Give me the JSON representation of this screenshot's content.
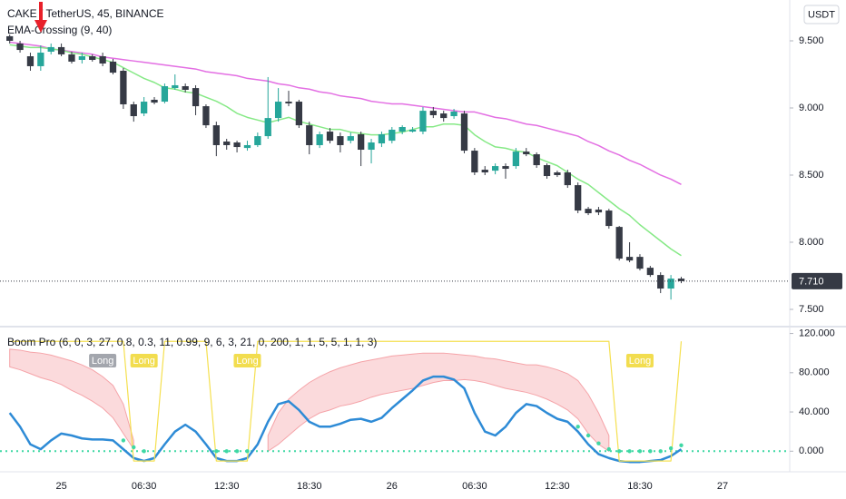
{
  "chart_data": [
    {
      "type": "candlestick",
      "title": "CAKE / TetherUS, 45, BINANCE",
      "subtitle": "EMA-Crossing (9, 40)",
      "unit": "USDT",
      "categories": [
        null,
        null,
        null,
        null,
        null,
        "25",
        null,
        null,
        null,
        null,
        null,
        null,
        null,
        "06:30",
        null,
        null,
        null,
        null,
        null,
        null,
        null,
        "12:30",
        null,
        null,
        null,
        null,
        null,
        null,
        null,
        "18:30",
        null,
        null,
        null,
        null,
        null,
        null,
        null,
        "26",
        null,
        null,
        null,
        null,
        null,
        null,
        null,
        "06:30",
        null,
        null,
        null,
        null,
        null,
        null,
        null,
        "12:30",
        null,
        null,
        null,
        null,
        null,
        null,
        null,
        "18:30",
        null,
        null,
        null,
        null,
        null,
        null,
        null,
        "27",
        null,
        null,
        null,
        null,
        null,
        null
      ],
      "open": [
        9.534,
        9.48,
        9.385,
        9.311,
        9.419,
        9.453,
        9.399,
        9.358,
        9.385,
        9.385,
        9.345,
        9.277,
        9.027,
        8.959,
        9.061,
        9.047,
        9.148,
        9.162,
        9.148,
        9.013,
        8.871,
        8.75,
        8.743,
        8.702,
        8.723,
        8.79,
        8.925,
        9.047,
        9.047,
        8.871,
        8.723,
        8.824,
        8.79,
        8.756,
        8.804,
        8.689,
        8.736,
        8.756,
        8.824,
        8.824,
        8.824,
        8.979,
        8.959,
        8.939,
        8.959,
        8.682,
        8.54,
        8.533,
        8.567,
        8.567,
        8.675,
        8.655,
        8.574,
        8.52,
        8.52,
        8.425,
        8.249,
        8.243,
        8.236,
        8.114,
        7.891,
        7.891,
        7.81,
        7.756,
        7.655,
        7.729,
        null,
        null,
        null,
        null,
        null,
        null,
        null,
        null,
        null,
        null
      ],
      "high": [
        9.547,
        9.5,
        9.412,
        9.466,
        9.48,
        9.48,
        9.419,
        9.412,
        9.399,
        9.412,
        9.365,
        9.297,
        9.047,
        9.081,
        9.081,
        9.182,
        9.25,
        9.182,
        9.169,
        9.027,
        8.898,
        8.77,
        8.756,
        8.756,
        8.817,
        9.23,
        9.148,
        9.128,
        9.061,
        8.898,
        8.824,
        8.851,
        8.817,
        8.817,
        8.824,
        8.77,
        8.824,
        8.858,
        8.871,
        8.858,
        9.007,
        9.007,
        8.979,
        8.993,
        8.979,
        8.702,
        8.567,
        8.587,
        8.587,
        8.702,
        8.702,
        8.669,
        8.587,
        8.533,
        8.54,
        8.445,
        8.263,
        8.263,
        8.249,
        8.121,
        8.0,
        7.911,
        7.824,
        7.776,
        7.756,
        7.742,
        null,
        null,
        null,
        null,
        null,
        null,
        null,
        null,
        null,
        null
      ],
      "low": [
        9.48,
        9.412,
        9.277,
        9.277,
        9.399,
        9.385,
        9.331,
        9.331,
        9.345,
        9.311,
        9.25,
        8.993,
        8.898,
        8.939,
        9.027,
        9.034,
        9.135,
        9.115,
        8.946,
        8.851,
        8.641,
        8.689,
        8.669,
        8.682,
        8.709,
        8.77,
        8.898,
        9.013,
        8.851,
        8.655,
        8.702,
        8.736,
        8.669,
        8.736,
        8.567,
        8.587,
        8.709,
        8.736,
        8.804,
        8.817,
        8.804,
        8.925,
        8.898,
        8.919,
        8.662,
        8.5,
        8.5,
        8.506,
        8.473,
        8.547,
        8.641,
        8.554,
        8.473,
        8.486,
        8.405,
        8.216,
        8.202,
        8.202,
        8.101,
        7.864,
        7.851,
        7.79,
        7.742,
        7.621,
        7.573,
        7.695,
        null,
        null,
        null,
        null,
        null,
        null,
        null,
        null,
        null,
        null
      ],
      "close": [
        9.5,
        9.432,
        9.311,
        9.412,
        9.453,
        9.399,
        9.345,
        9.385,
        9.358,
        9.331,
        9.263,
        9.027,
        8.939,
        9.047,
        9.04,
        9.162,
        9.169,
        9.135,
        9.013,
        8.871,
        8.723,
        8.723,
        8.709,
        8.723,
        8.79,
        8.925,
        9.047,
        9.034,
        8.871,
        8.723,
        8.804,
        8.756,
        8.723,
        8.79,
        8.689,
        8.743,
        8.804,
        8.838,
        8.858,
        8.838,
        8.979,
        8.946,
        8.925,
        8.973,
        8.682,
        8.52,
        8.52,
        8.567,
        8.547,
        8.675,
        8.655,
        8.574,
        8.493,
        8.5,
        8.425,
        8.236,
        8.216,
        8.222,
        8.121,
        7.878,
        7.864,
        7.803,
        7.756,
        7.655,
        7.729,
        7.71,
        null,
        null,
        null,
        null,
        null,
        null,
        null,
        null,
        null,
        null
      ],
      "up_color": "#26a69a",
      "down_color": "#363a45",
      "series": [
        {
          "color": "#e36fe3",
          "values": [
            9.49,
            9.48,
            9.47,
            9.46,
            9.44,
            9.43,
            9.42,
            9.41,
            9.4,
            9.38,
            9.37,
            9.36,
            9.35,
            9.34,
            9.33,
            9.32,
            9.31,
            9.3,
            9.29,
            9.27,
            9.26,
            9.25,
            9.24,
            9.22,
            9.21,
            9.2,
            9.18,
            9.17,
            9.15,
            9.14,
            9.12,
            9.11,
            9.09,
            9.08,
            9.07,
            9.05,
            9.04,
            9.03,
            9.03,
            9.02,
            9.01,
            9.0,
            8.99,
            8.98,
            8.97,
            8.97,
            8.95,
            8.93,
            8.92,
            8.9,
            8.88,
            8.87,
            8.85,
            8.83,
            8.81,
            8.79,
            8.75,
            8.72,
            8.68,
            8.65,
            8.61,
            8.58,
            8.54,
            8.5,
            8.47,
            8.43,
            null,
            null,
            null,
            null,
            null,
            null,
            null,
            null,
            null,
            null
          ]
        },
        {
          "color": "#86e986",
          "values": [
            9.47,
            9.46,
            9.45,
            9.45,
            9.44,
            9.43,
            9.41,
            9.4,
            9.38,
            9.36,
            9.34,
            9.3,
            9.26,
            9.22,
            9.19,
            9.15,
            9.14,
            9.12,
            9.11,
            9.08,
            9.05,
            9.01,
            8.96,
            8.93,
            8.91,
            8.89,
            8.91,
            8.93,
            8.9,
            8.88,
            8.86,
            8.84,
            8.84,
            8.82,
            8.81,
            8.8,
            8.8,
            8.81,
            8.82,
            8.84,
            8.86,
            8.86,
            8.88,
            8.88,
            8.87,
            8.8,
            8.75,
            8.71,
            8.7,
            8.68,
            8.67,
            8.63,
            8.6,
            8.57,
            8.52,
            8.47,
            8.43,
            8.37,
            8.31,
            8.25,
            8.2,
            8.13,
            8.07,
            8.01,
            7.95,
            7.9,
            null,
            null,
            null,
            null,
            null,
            null,
            null,
            null,
            null,
            null
          ]
        }
      ],
      "ylim": [
        7.385,
        9.804
      ],
      "yticks": [
        {
          "value": 9.5,
          "label": "9.500"
        },
        {
          "value": 9.0,
          "label": "9.000"
        },
        {
          "value": 8.5,
          "label": "8.500"
        },
        {
          "value": 8.0,
          "label": "8.000"
        },
        {
          "value": 7.5,
          "label": "7.500"
        }
      ],
      "last_price": {
        "value": 7.71,
        "label": "7.710"
      },
      "grid": false
    },
    {
      "type": "oscillator",
      "title": "Boom Pro (6, 0, 3, 27, 0.8, 0.3, 11, 0.99, 9, 6, 3, 21, 0, 200, 1, 1, 5, 5, 1, 1, 3)",
      "series": [
        {
          "color": "#2e8bd6",
          "values": [
            39,
            25,
            7,
            2,
            11,
            18,
            16,
            13,
            12,
            12,
            11,
            2,
            -7,
            -10,
            -7,
            7,
            20,
            27,
            20,
            7,
            -7,
            -10,
            -10,
            -7,
            7,
            30,
            48,
            51,
            42,
            30,
            25,
            25,
            28,
            32,
            33,
            30,
            34,
            44,
            53,
            62,
            72,
            76,
            76,
            73,
            64,
            39,
            20,
            16,
            25,
            39,
            48,
            46,
            39,
            33,
            30,
            20,
            7,
            -3,
            -7,
            -10,
            -11,
            -11,
            -10,
            -9,
            -5,
            2,
            null,
            null,
            null,
            null,
            null,
            null,
            null,
            null,
            null,
            null
          ]
        },
        {
          "color": "#f5e050",
          "values": [
            112,
            112,
            112,
            112,
            112,
            112,
            112,
            112,
            112,
            112,
            112,
            112,
            -10,
            -10,
            -10,
            112,
            112,
            112,
            112,
            112,
            -10,
            -10,
            -10,
            -10,
            112,
            112,
            112,
            112,
            112,
            112,
            112,
            112,
            112,
            112,
            112,
            112,
            112,
            112,
            112,
            112,
            112,
            112,
            112,
            112,
            112,
            112,
            112,
            112,
            112,
            112,
            112,
            112,
            112,
            112,
            112,
            112,
            112,
            112,
            112,
            -10,
            -10,
            -10,
            -10,
            -10,
            -10,
            112,
            null,
            null,
            null,
            null,
            null,
            null,
            null,
            null,
            null,
            null
          ]
        }
      ],
      "band": {
        "color": "#f5a3a8",
        "upper": [
          104,
          103,
          101,
          100,
          98,
          95,
          92,
          88,
          83,
          76,
          67,
          48,
          11,
          null,
          null,
          null,
          null,
          null,
          null,
          null,
          null,
          null,
          null,
          null,
          null,
          16,
          39,
          53,
          62,
          70,
          76,
          81,
          85,
          88,
          91,
          93,
          95,
          97,
          98,
          99,
          100,
          100,
          100,
          99,
          98,
          97,
          95,
          94,
          92,
          90,
          88,
          88,
          86,
          83,
          79,
          72,
          58,
          39,
          16,
          null,
          null,
          null,
          null,
          null,
          null,
          null,
          null,
          null,
          null,
          null,
          null,
          null,
          null,
          null,
          null,
          null
        ],
        "lower": [
          86,
          83,
          79,
          75,
          72,
          68,
          62,
          57,
          51,
          44,
          34,
          18,
          2,
          null,
          null,
          null,
          null,
          null,
          null,
          null,
          null,
          null,
          null,
          null,
          null,
          0,
          7,
          16,
          25,
          33,
          39,
          42,
          46,
          48,
          51,
          55,
          58,
          60,
          62,
          64,
          67,
          70,
          72,
          72,
          73,
          72,
          70,
          67,
          64,
          62,
          60,
          57,
          53,
          48,
          42,
          33,
          18,
          7,
          0,
          null,
          null,
          null,
          null,
          null,
          null,
          null,
          null,
          null,
          null,
          null,
          null,
          null,
          null,
          null,
          null,
          null
        ]
      },
      "dots": {
        "color": "#3fd8a4",
        "values": [
          null,
          null,
          null,
          null,
          null,
          null,
          null,
          null,
          null,
          null,
          null,
          11,
          4,
          0,
          null,
          null,
          null,
          null,
          null,
          null,
          0,
          0,
          0,
          0,
          null,
          null,
          null,
          null,
          null,
          null,
          null,
          null,
          null,
          null,
          null,
          null,
          null,
          null,
          null,
          null,
          null,
          null,
          null,
          null,
          null,
          null,
          null,
          null,
          null,
          null,
          null,
          null,
          null,
          null,
          null,
          25,
          16,
          8,
          2,
          0,
          0,
          0,
          0,
          0,
          3,
          6,
          null,
          null,
          null,
          null,
          null,
          null,
          null,
          null,
          null,
          null
        ]
      },
      "hline": {
        "value": 0,
        "color": "#3fd8a4"
      },
      "signals": [
        null,
        null,
        null,
        null,
        null,
        null,
        null,
        null,
        null,
        "Long",
        null,
        null,
        null,
        "Long",
        null,
        null,
        null,
        null,
        null,
        null,
        null,
        null,
        null,
        "Long",
        null,
        null,
        null,
        null,
        null,
        null,
        null,
        null,
        null,
        null,
        null,
        null,
        null,
        null,
        null,
        null,
        null,
        null,
        null,
        null,
        null,
        null,
        null,
        null,
        null,
        null,
        null,
        null,
        null,
        null,
        null,
        null,
        null,
        null,
        null,
        null,
        null,
        "Long",
        null,
        null,
        null,
        null,
        null,
        null,
        null,
        null,
        null,
        null,
        null,
        null,
        null,
        null
      ],
      "signal_colors": [
        null,
        null,
        null,
        null,
        null,
        null,
        null,
        null,
        null,
        "#a3a6ad",
        null,
        null,
        null,
        "#f2dd4f",
        null,
        null,
        null,
        null,
        null,
        null,
        null,
        null,
        null,
        "#f2dd4f",
        null,
        null,
        null,
        null,
        null,
        null,
        null,
        null,
        null,
        null,
        null,
        null,
        null,
        null,
        null,
        null,
        null,
        null,
        null,
        null,
        null,
        null,
        null,
        null,
        null,
        null,
        null,
        null,
        null,
        null,
        null,
        null,
        null,
        null,
        null,
        null,
        null,
        "#f2dd4f",
        null,
        null,
        null,
        null,
        null,
        null,
        null,
        null,
        null,
        null,
        null,
        null,
        null,
        null
      ],
      "ylim": [
        -21,
        127
      ],
      "yticks": [
        {
          "value": 120,
          "label": "120.000"
        },
        {
          "value": 80,
          "label": "80.000"
        },
        {
          "value": 40,
          "label": "40.000"
        },
        {
          "value": 0,
          "label": "0.000"
        }
      ]
    }
  ]
}
